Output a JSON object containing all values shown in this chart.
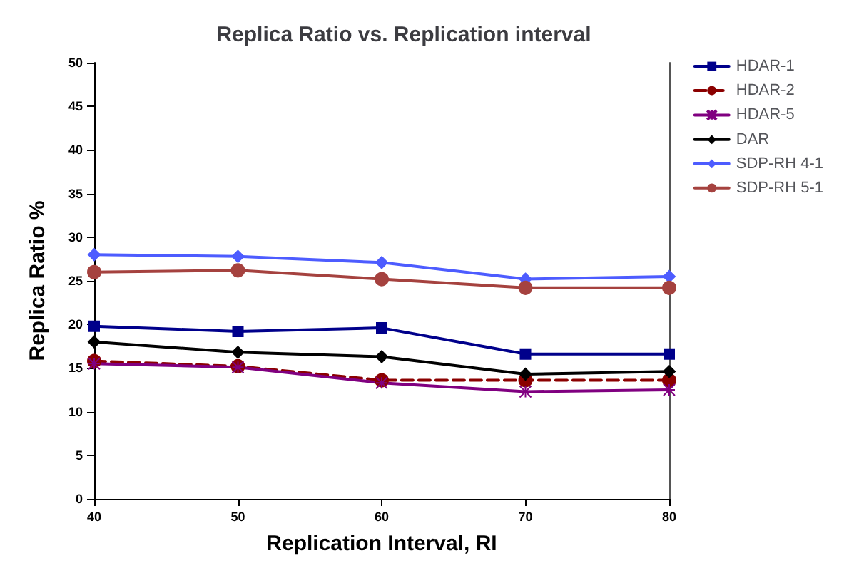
{
  "chart_data": {
    "type": "line",
    "title": "Replica Ratio vs. Replication interval",
    "xlabel": "Replication Interval, RI",
    "ylabel": "Replica Ratio %",
    "x": [
      40,
      50,
      60,
      70,
      80
    ],
    "xlim": [
      40,
      80
    ],
    "xticks": [
      40,
      50,
      60,
      70,
      80
    ],
    "ylim": [
      0,
      50
    ],
    "yticks": [
      0,
      5,
      10,
      15,
      20,
      25,
      30,
      35,
      40,
      45,
      50
    ],
    "grid": false,
    "legend": "right",
    "series": [
      {
        "name": "HDAR-1",
        "color": "#00008b",
        "marker": "square",
        "values": [
          19.8,
          19.2,
          19.6,
          16.6,
          16.6
        ]
      },
      {
        "name": "HDAR-2",
        "color": "#8b0000",
        "marker": "circle",
        "line_style": "dashed",
        "values": [
          15.8,
          15.2,
          13.6,
          13.6,
          13.6
        ]
      },
      {
        "name": "HDAR-5",
        "color": "#800080",
        "marker": "cross",
        "values": [
          15.5,
          15.1,
          13.3,
          12.3,
          12.5
        ]
      },
      {
        "name": "DAR",
        "color": "#000000",
        "marker": "diamond",
        "values": [
          18,
          16.8,
          16.3,
          14.3,
          14.6
        ]
      },
      {
        "name": "SDP-RH 4-1",
        "color": "#4d5cff",
        "marker": "diamond",
        "values": [
          28,
          27.8,
          27.1,
          25.2,
          25.5
        ]
      },
      {
        "name": "SDP-RH 5-1",
        "color": "#a5423f",
        "marker": "circle",
        "values": [
          26,
          26.2,
          25.2,
          24.2,
          24.2
        ]
      }
    ]
  }
}
